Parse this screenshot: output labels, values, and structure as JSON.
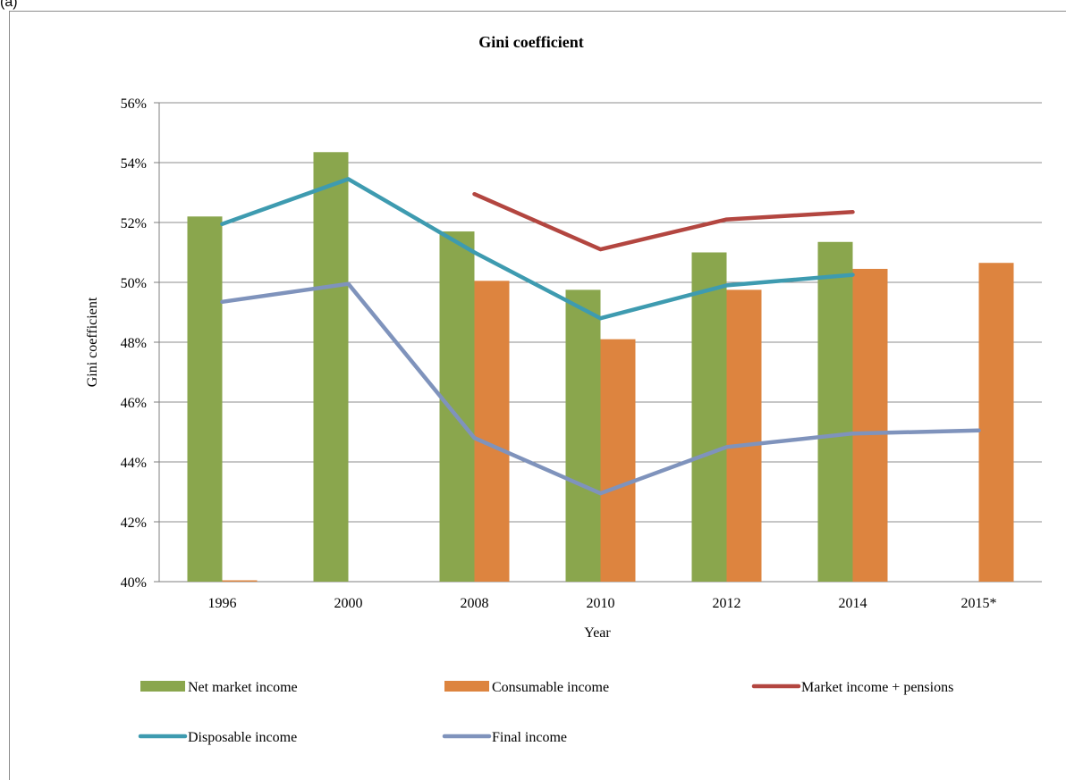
{
  "panel_label": "(a)",
  "chart_data": {
    "type": "bar",
    "title": "Gini coefficient",
    "xlabel": "Year",
    "ylabel": "Gini coefficient",
    "ylim": [
      40,
      56
    ],
    "ytick_step": 2,
    "ytick_suffix": "%",
    "grid": true,
    "legend_position": "bottom",
    "categories": [
      "1996",
      "2000",
      "2008",
      "2010",
      "2012",
      "2014",
      "2015*"
    ],
    "series": [
      {
        "name": "Net market income",
        "kind": "bar",
        "color": "#8aa64d",
        "values": [
          52.2,
          54.35,
          51.7,
          49.75,
          51.0,
          51.35,
          null
        ]
      },
      {
        "name": "Consumable income",
        "kind": "bar",
        "color": "#dd843f",
        "values": [
          40.0,
          null,
          50.05,
          48.1,
          49.75,
          50.45,
          50.65
        ]
      },
      {
        "name": "Market income + pensions",
        "kind": "line",
        "color": "#b34640",
        "values": [
          null,
          null,
          52.95,
          51.1,
          52.1,
          52.35,
          null
        ]
      },
      {
        "name": "Disposable income",
        "kind": "line",
        "color": "#3e9bb0",
        "values": [
          51.95,
          53.45,
          51.0,
          48.8,
          49.9,
          50.25,
          null
        ]
      },
      {
        "name": "Final income",
        "kind": "line",
        "color": "#7f93bc",
        "values": [
          49.35,
          49.95,
          44.8,
          42.95,
          44.5,
          44.95,
          45.05
        ]
      }
    ]
  }
}
